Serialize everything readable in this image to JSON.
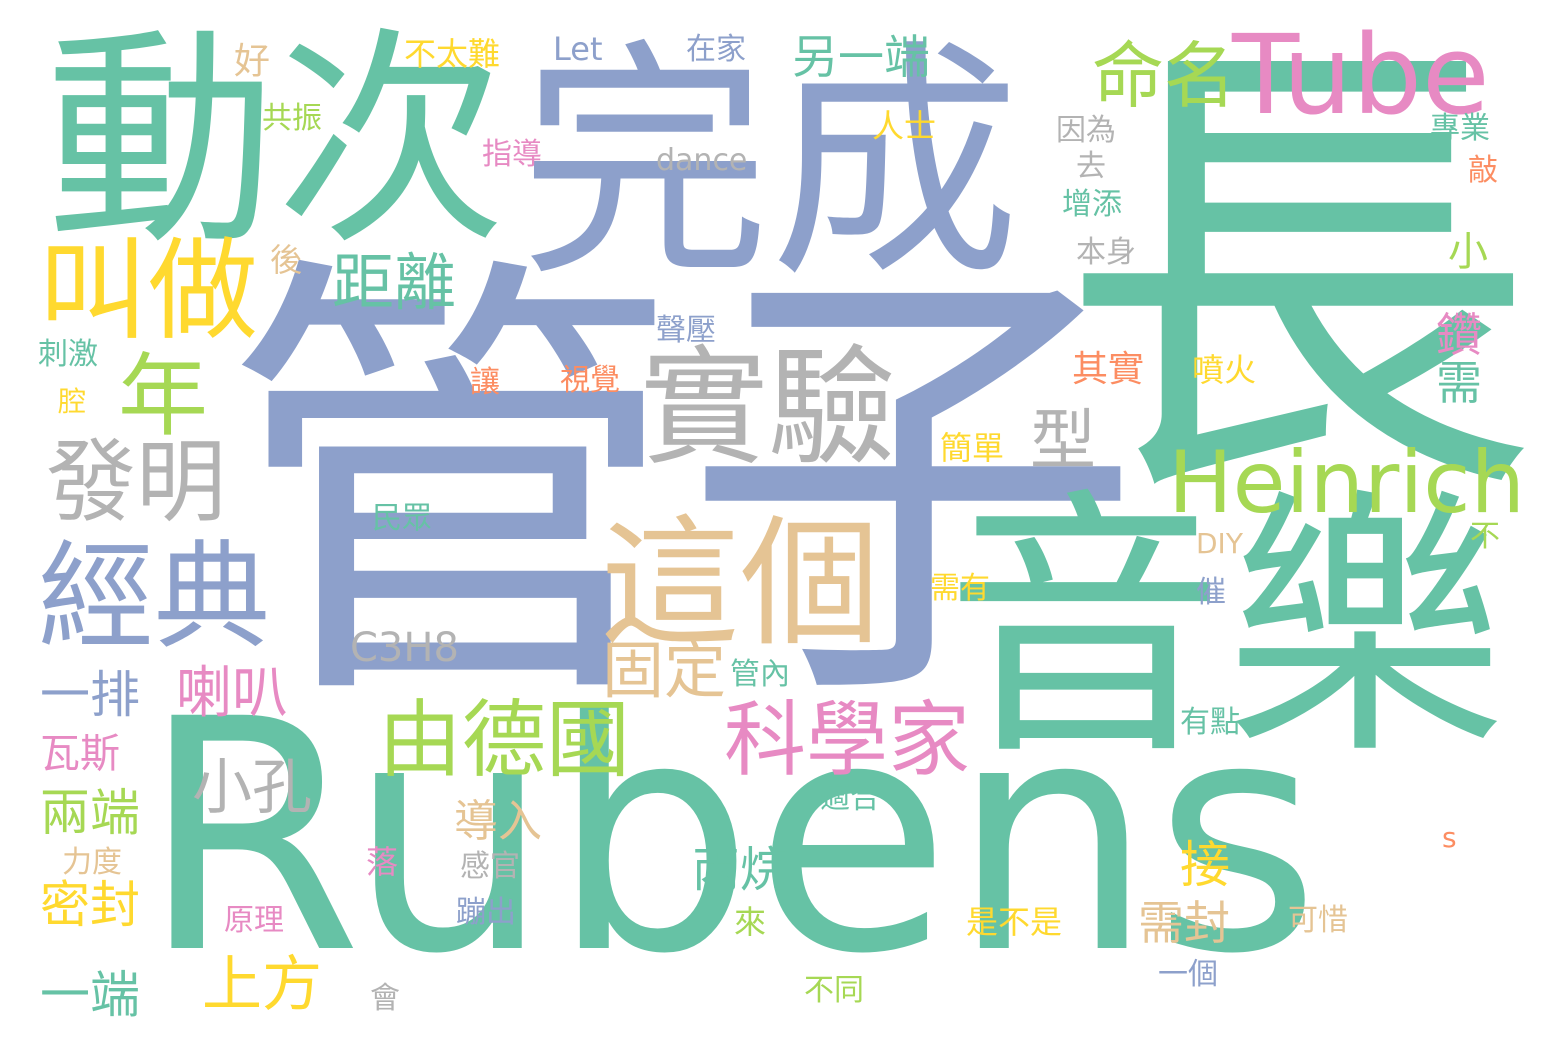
{
  "palette": {
    "green": "#66c2a5",
    "blue": "#8da0cb",
    "pink": "#e78ac3",
    "lime": "#a6d854",
    "yellow": "#ffd92f",
    "tan": "#e5c494",
    "gray": "#b3b3b3",
    "orange": "#fc8d62"
  },
  "words": [
    {
      "text": "管子",
      "color": "blue"
    },
    {
      "text": "Rubens",
      "color": "green"
    },
    {
      "text": "長",
      "color": "green"
    },
    {
      "text": "音樂",
      "color": "green"
    },
    {
      "text": "完成",
      "color": "blue"
    },
    {
      "text": "動次",
      "color": "green"
    },
    {
      "text": "這個",
      "color": "tan"
    },
    {
      "text": "實驗",
      "color": "gray"
    },
    {
      "text": "Tube",
      "color": "pink"
    },
    {
      "text": "叫做",
      "color": "yellow"
    },
    {
      "text": "經典",
      "color": "blue"
    },
    {
      "text": "由德國",
      "color": "lime"
    },
    {
      "text": "科學家",
      "color": "pink"
    },
    {
      "text": "Heinrich",
      "color": "lime"
    },
    {
      "text": "發明",
      "color": "gray"
    },
    {
      "text": "命名",
      "color": "lime"
    },
    {
      "text": "年",
      "color": "lime"
    },
    {
      "text": "距離",
      "color": "green"
    },
    {
      "text": "型",
      "color": "gray"
    },
    {
      "text": "固定",
      "color": "tan"
    },
    {
      "text": "小孔",
      "color": "gray"
    },
    {
      "text": "上方",
      "color": "yellow"
    },
    {
      "text": "喇叭",
      "color": "pink"
    },
    {
      "text": "一排",
      "color": "blue"
    },
    {
      "text": "兩端",
      "color": "lime"
    },
    {
      "text": "密封",
      "color": "yellow"
    },
    {
      "text": "一端",
      "color": "green"
    },
    {
      "text": "丙烷",
      "color": "green"
    },
    {
      "text": "接",
      "color": "yellow"
    },
    {
      "text": "需封",
      "color": "tan"
    },
    {
      "text": "另一端",
      "color": "green"
    },
    {
      "text": "鑽",
      "color": "pink"
    },
    {
      "text": "需",
      "color": "green"
    },
    {
      "text": "小",
      "color": "lime"
    },
    {
      "text": "C3H8",
      "color": "gray"
    },
    {
      "text": "導入",
      "color": "tan"
    },
    {
      "text": "瓦斯",
      "color": "pink"
    },
    {
      "text": "Let",
      "color": "blue"
    },
    {
      "text": "在家",
      "color": "blue"
    },
    {
      "text": "不太難",
      "color": "yellow"
    },
    {
      "text": "好",
      "color": "tan"
    },
    {
      "text": "共振",
      "color": "lime"
    },
    {
      "text": "指導",
      "color": "pink"
    },
    {
      "text": "dance",
      "color": "gray"
    },
    {
      "text": "人士",
      "color": "yellow"
    },
    {
      "text": "因為",
      "color": "gray"
    },
    {
      "text": "去",
      "color": "gray"
    },
    {
      "text": "增添",
      "color": "green"
    },
    {
      "text": "本身",
      "color": "gray"
    },
    {
      "text": "專業",
      "color": "green"
    },
    {
      "text": "敲",
      "color": "orange"
    },
    {
      "text": "後",
      "color": "tan"
    },
    {
      "text": "刺激",
      "color": "green"
    },
    {
      "text": "腔",
      "color": "yellow"
    },
    {
      "text": "聲壓",
      "color": "blue"
    },
    {
      "text": "讓",
      "color": "orange"
    },
    {
      "text": "視覺",
      "color": "orange"
    },
    {
      "text": "其實",
      "color": "orange"
    },
    {
      "text": "噴火",
      "color": "yellow"
    },
    {
      "text": "簡單",
      "color": "yellow"
    },
    {
      "text": "民眾",
      "color": "green"
    },
    {
      "text": "DIY",
      "color": "tan"
    },
    {
      "text": "不",
      "color": "lime"
    },
    {
      "text": "需有",
      "color": "yellow"
    },
    {
      "text": "催",
      "color": "blue"
    },
    {
      "text": "管內",
      "color": "green"
    },
    {
      "text": "有點",
      "color": "green"
    },
    {
      "text": "適合",
      "color": "green"
    },
    {
      "text": "力度",
      "color": "tan"
    },
    {
      "text": "感官",
      "color": "gray"
    },
    {
      "text": "落",
      "color": "pink"
    },
    {
      "text": "蹦出",
      "color": "blue"
    },
    {
      "text": "原理",
      "color": "pink"
    },
    {
      "text": "來",
      "color": "lime"
    },
    {
      "text": "是不是",
      "color": "yellow"
    },
    {
      "text": "可惜",
      "color": "tan"
    },
    {
      "text": "s",
      "color": "orange"
    },
    {
      "text": "一個",
      "color": "blue"
    },
    {
      "text": "不同",
      "color": "lime"
    },
    {
      "text": "會",
      "color": "gray"
    }
  ]
}
